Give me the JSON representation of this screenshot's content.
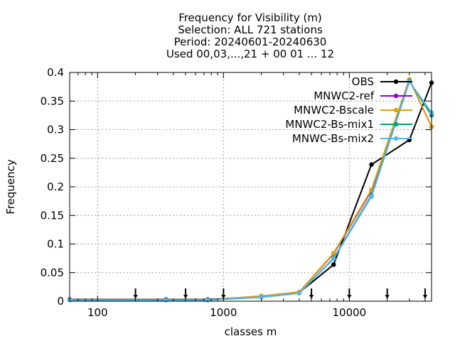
{
  "chart_data": {
    "type": "line",
    "title_lines": [
      "Frequency  for Visibility (m)",
      "Selection: ALL    721 stations",
      "Period: 20240601-20240630",
      "Used 00,03,...,21 + 00 01 ... 12"
    ],
    "xlabel": "classes m",
    "ylabel": "Frequency",
    "x_scale": "log",
    "xlim": [
      60,
      45000
    ],
    "ylim": [
      0,
      0.4
    ],
    "x_ticks": [
      100,
      1000,
      10000
    ],
    "x_tick_labels": [
      "100",
      "1000",
      "10000"
    ],
    "y_ticks": [
      0,
      0.05,
      0.1,
      0.15,
      0.2,
      0.25,
      0.3,
      0.35,
      0.4
    ],
    "y_tick_labels": [
      "0",
      "0.05",
      "0.1",
      "0.15",
      "0.2",
      "0.25",
      "0.3",
      "0.35",
      "0.4"
    ],
    "grid": true,
    "legend_position": "top-right",
    "class_boundaries": [
      200,
      500,
      1000,
      5000,
      10000,
      20000,
      40000
    ],
    "x": [
      60,
      350,
      750,
      2000,
      4000,
      7500,
      15000,
      30000,
      45000
    ],
    "series": [
      {
        "name": "OBS",
        "color": "#000000",
        "values": [
          0.003,
          0.003,
          0.003,
          0.008,
          0.015,
          0.064,
          0.239,
          0.282,
          0.382
        ]
      },
      {
        "name": "MNWC2-ref",
        "color": "#9400d3",
        "values": [
          0.002,
          0.002,
          0.002,
          0.009,
          0.016,
          0.083,
          0.193,
          0.388,
          0.305
        ]
      },
      {
        "name": "MNWC2-Bscale",
        "color": "#e69f00",
        "values": [
          0.002,
          0.002,
          0.002,
          0.009,
          0.016,
          0.084,
          0.195,
          0.388,
          0.305
        ]
      },
      {
        "name": "MNWC2-Bs-mix1",
        "color": "#009e73",
        "values": [
          0.002,
          0.002,
          0.002,
          0.007,
          0.014,
          0.075,
          0.185,
          0.385,
          0.325
        ]
      },
      {
        "name": "MNWC-Bs-mix2",
        "color": "#56b4e9",
        "values": [
          0.002,
          0.002,
          0.002,
          0.007,
          0.014,
          0.074,
          0.183,
          0.384,
          0.33
        ]
      }
    ]
  }
}
